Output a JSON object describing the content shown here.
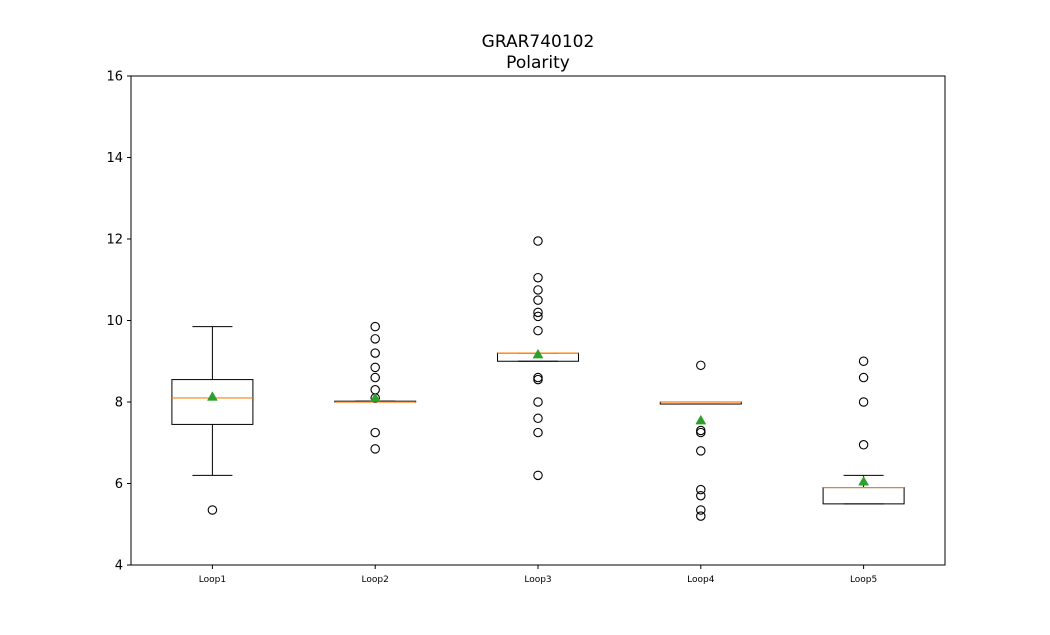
{
  "chart_data": {
    "type": "box",
    "title": "GRAR740102",
    "subtitle": "Polarity",
    "xlabel": "",
    "ylabel": "",
    "ylim": [
      4,
      16
    ],
    "yticks": [
      "4",
      "6",
      "8",
      "10",
      "12",
      "14",
      "16"
    ],
    "grid": false,
    "colors": {
      "box": "#000000",
      "median": "#ff7f0e",
      "mean": "#2ca02c",
      "flier": "#000000"
    },
    "categories": [
      "Loop1",
      "Loop2",
      "Loop3",
      "Loop4",
      "Loop5"
    ],
    "boxes": [
      {
        "label": "Loop1",
        "whisker_low": 6.2,
        "q1": 7.45,
        "median": 8.1,
        "q3": 8.55,
        "whisker_high": 9.85,
        "mean": 8.13,
        "outliers": [
          5.35
        ]
      },
      {
        "label": "Loop2",
        "whisker_low": 8.0,
        "q1": 8.0,
        "median": 8.0,
        "q3": 8.02,
        "whisker_high": 8.02,
        "mean": 8.1,
        "outliers": [
          6.85,
          7.25,
          8.1,
          8.3,
          8.6,
          8.85,
          9.2,
          9.55,
          9.85
        ]
      },
      {
        "label": "Loop3",
        "whisker_low": 9.0,
        "q1": 9.0,
        "median": 9.2,
        "q3": 9.2,
        "whisker_high": 9.2,
        "mean": 9.17,
        "outliers": [
          6.2,
          7.25,
          7.6,
          8.0,
          8.55,
          8.6,
          9.75,
          10.1,
          10.2,
          10.5,
          10.75,
          11.05,
          11.95
        ]
      },
      {
        "label": "Loop4",
        "whisker_low": 7.95,
        "q1": 7.95,
        "median": 8.0,
        "q3": 8.0,
        "whisker_high": 8.0,
        "mean": 7.55,
        "outliers": [
          5.2,
          5.35,
          5.7,
          5.85,
          6.8,
          7.25,
          7.3,
          8.9
        ]
      },
      {
        "label": "Loop5",
        "whisker_low": 5.5,
        "q1": 5.5,
        "median": 5.9,
        "q3": 5.9,
        "whisker_high": 6.2,
        "mean": 6.05,
        "outliers": [
          6.95,
          8.0,
          8.6,
          9.0
        ]
      }
    ]
  }
}
